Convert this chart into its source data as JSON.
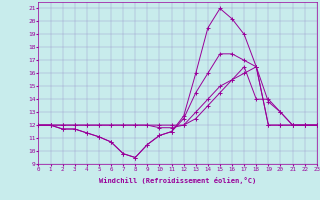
{
  "xlabel": "Windchill (Refroidissement éolien,°C)",
  "background_color": "#c8ecec",
  "line_color": "#990099",
  "xlim": [
    0,
    23
  ],
  "ylim": [
    9,
    21.5
  ],
  "xticks": [
    0,
    1,
    2,
    3,
    4,
    5,
    6,
    7,
    8,
    9,
    10,
    11,
    12,
    13,
    14,
    15,
    16,
    17,
    18,
    19,
    20,
    21,
    22,
    23
  ],
  "yticks": [
    9,
    10,
    11,
    12,
    13,
    14,
    15,
    16,
    17,
    18,
    19,
    20,
    21
  ],
  "series": [
    {
      "x": [
        0,
        1,
        2,
        3,
        4,
        5,
        6,
        7,
        8,
        9,
        10,
        11,
        12,
        13,
        14,
        15,
        16,
        17,
        18,
        19,
        20,
        21,
        22,
        23
      ],
      "y": [
        12,
        12,
        11.7,
        11.7,
        11.4,
        11.1,
        10.7,
        9.8,
        9.5,
        10.5,
        11.2,
        11.5,
        12.7,
        16.0,
        19.5,
        21.0,
        20.2,
        19.0,
        16.5,
        12,
        12,
        12,
        12,
        12
      ]
    },
    {
      "x": [
        0,
        1,
        2,
        3,
        4,
        5,
        6,
        7,
        8,
        9,
        10,
        11,
        12,
        13,
        14,
        15,
        16,
        17,
        18,
        19,
        20,
        21,
        22,
        23
      ],
      "y": [
        12,
        12,
        11.7,
        11.7,
        11.4,
        11.1,
        10.7,
        9.8,
        9.5,
        10.5,
        11.2,
        11.5,
        12.5,
        14.5,
        16.0,
        17.5,
        17.5,
        17.0,
        16.5,
        12,
        12,
        12,
        12,
        12
      ]
    },
    {
      "x": [
        0,
        1,
        2,
        3,
        4,
        5,
        6,
        7,
        8,
        9,
        10,
        11,
        12,
        13,
        14,
        15,
        16,
        17,
        18,
        19,
        20,
        21,
        22,
        23
      ],
      "y": [
        12,
        12,
        12,
        12,
        12,
        12,
        12,
        12,
        12,
        12,
        12,
        12,
        12,
        13,
        14,
        15,
        15.5,
        16.0,
        16.5,
        13.8,
        13.0,
        12,
        12,
        12
      ]
    },
    {
      "x": [
        0,
        1,
        2,
        3,
        4,
        5,
        6,
        7,
        8,
        9,
        10,
        11,
        12,
        13,
        14,
        15,
        16,
        17,
        18,
        19,
        20,
        21,
        22,
        23
      ],
      "y": [
        12,
        12,
        12,
        12,
        12,
        12,
        12,
        12,
        12,
        12,
        11.8,
        11.8,
        12,
        12.5,
        13.5,
        14.5,
        15.5,
        16.5,
        14.0,
        14.0,
        13.0,
        12,
        12,
        12
      ]
    }
  ]
}
